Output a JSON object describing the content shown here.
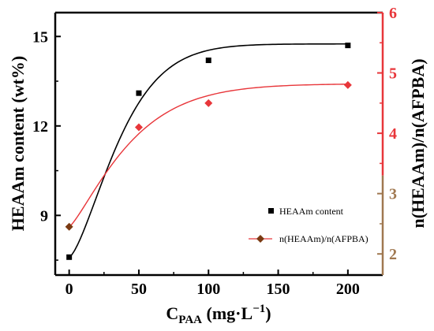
{
  "chart_data": {
    "type": "scatter",
    "x": [
      0,
      50,
      100,
      200
    ],
    "xlim": [
      -10,
      225
    ],
    "xticks": [
      0,
      50,
      100,
      150,
      200
    ],
    "xlabel": {
      "base": "C",
      "subscript": "PAA",
      "units": " (mg·L",
      "exponent": "−1",
      "close": ")"
    },
    "ylabel_left": "HEAAm content (wt%)",
    "ylim_left": [
      7.0,
      15.8
    ],
    "yticks_left": [
      9,
      12,
      15
    ],
    "ylabel_right": "n(HEAAm)/n(AFPBA)",
    "ylim_right": [
      1.65,
      6.0
    ],
    "yticks_right": [
      2,
      3,
      4,
      5,
      6
    ],
    "series": [
      {
        "name": "HEAAm content",
        "axis": "left",
        "marker": "square",
        "color": "#000000",
        "fit_color": "#000000",
        "values": [
          7.6,
          13.1,
          14.2,
          14.7
        ]
      },
      {
        "name": "n(HEAAm)/n(AFPBA)",
        "axis": "right",
        "marker": "diamond",
        "color": "#e8363a",
        "first_point_color": "#7a3a12",
        "fit_color": "#e8363a",
        "values": [
          2.45,
          4.1,
          4.5,
          4.8
        ]
      }
    ],
    "right_axis_colors": {
      "upper": "#e8363a",
      "lower": "#a07850"
    },
    "legend_position": "bottom-right",
    "grid": false
  }
}
